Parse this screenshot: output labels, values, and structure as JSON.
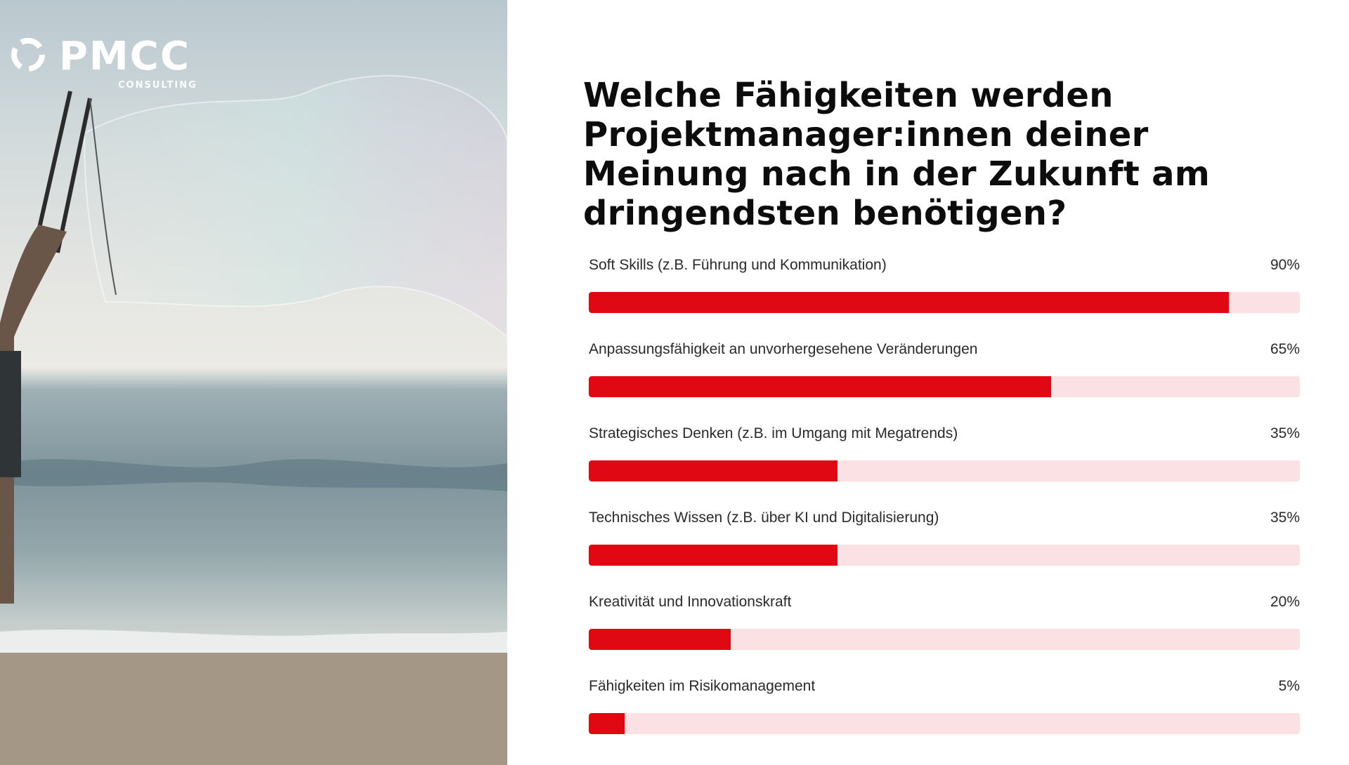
{
  "logo": {
    "text": "PMCC",
    "subtitle": "CONSULTING",
    "icon": "swirl-logo-icon"
  },
  "photo": {
    "description_icon": "beach-bubble-photo"
  },
  "colors": {
    "bar": "#e00812",
    "track": "#fbe1e3",
    "title": "#0c0c0c"
  },
  "chart_data": {
    "type": "bar",
    "orientation": "horizontal",
    "title": "Welche Fähigkeiten werden Projektmanager:innen deiner Meinung nach in der Zukunft am dringendsten benötigen?",
    "categories": [
      "Soft Skills (z.B. Führung und Kommunikation)",
      "Anpassungsfähigkeit an unvorhergesehene Veränderungen",
      "Strategisches Denken (z.B. im Umgang mit Megatrends)",
      "Technisches Wissen (z.B. über KI und Digitalisierung)",
      "Kreativität und Innovationskraft",
      "Fähigkeiten im Risikomanagement"
    ],
    "values": [
      90,
      65,
      35,
      35,
      20,
      5
    ],
    "value_labels": [
      "90%",
      "65%",
      "35%",
      "35%",
      "20%",
      "5%"
    ],
    "xlim": [
      0,
      100
    ],
    "grid": false,
    "legend": "none"
  }
}
